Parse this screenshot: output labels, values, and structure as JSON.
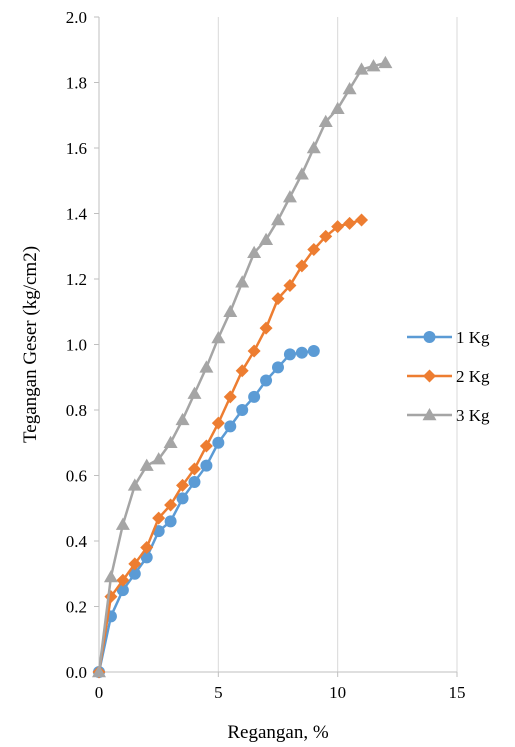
{
  "chart_data": {
    "type": "line",
    "title": "",
    "xlabel": "Regangan, %",
    "ylabel": "Tegangan Geser (kg/cm2)",
    "xlim": [
      0,
      15
    ],
    "ylim": [
      0,
      2.0
    ],
    "xticks": [
      0,
      5,
      10,
      15
    ],
    "yticks": [
      0.0,
      0.2,
      0.4,
      0.6,
      0.8,
      1.0,
      1.2,
      1.4,
      1.6,
      1.8,
      2.0
    ],
    "xtick_labels": [
      "0",
      "5",
      "10",
      "15"
    ],
    "ytick_labels": [
      "0.0",
      "0.2",
      "0.4",
      "0.6",
      "0.8",
      "1.0",
      "1.2",
      "1.4",
      "1.6",
      "1.8",
      "2.0"
    ],
    "grid": "vertical",
    "legend_position": "right",
    "series": [
      {
        "name": "1 Kg",
        "color": "#5B9BD5",
        "marker": "circle",
        "x": [
          0,
          0.5,
          1,
          1.5,
          2,
          2.5,
          3,
          3.5,
          4,
          4.5,
          5,
          5.5,
          6,
          6.5,
          7,
          7.5,
          8,
          8.5,
          9
        ],
        "y": [
          0.0,
          0.17,
          0.25,
          0.3,
          0.35,
          0.43,
          0.46,
          0.53,
          0.58,
          0.63,
          0.7,
          0.75,
          0.8,
          0.84,
          0.89,
          0.93,
          0.97,
          0.975,
          0.98
        ]
      },
      {
        "name": "2 Kg",
        "color": "#ED7D31",
        "marker": "diamond",
        "x": [
          0,
          0.5,
          1,
          1.5,
          2,
          2.5,
          3,
          3.5,
          4,
          4.5,
          5,
          5.5,
          6,
          6.5,
          7,
          7.5,
          8,
          8.5,
          9,
          9.5,
          10,
          10.5,
          11
        ],
        "y": [
          0.0,
          0.23,
          0.28,
          0.33,
          0.38,
          0.47,
          0.51,
          0.57,
          0.62,
          0.69,
          0.76,
          0.84,
          0.92,
          0.98,
          1.05,
          1.14,
          1.18,
          1.24,
          1.29,
          1.33,
          1.36,
          1.37,
          1.38
        ]
      },
      {
        "name": "3 Kg",
        "color": "#A5A5A5",
        "marker": "triangle",
        "x": [
          0,
          0.5,
          1,
          1.5,
          2,
          2.5,
          3,
          3.5,
          4,
          4.5,
          5,
          5.5,
          6,
          6.5,
          7,
          7.5,
          8,
          8.5,
          9,
          9.5,
          10,
          10.5,
          11,
          11.5,
          12
        ],
        "y": [
          0.0,
          0.29,
          0.45,
          0.57,
          0.63,
          0.65,
          0.7,
          0.77,
          0.85,
          0.93,
          1.02,
          1.1,
          1.19,
          1.28,
          1.32,
          1.38,
          1.45,
          1.52,
          1.6,
          1.68,
          1.72,
          1.78,
          1.84,
          1.85,
          1.86
        ]
      }
    ]
  }
}
